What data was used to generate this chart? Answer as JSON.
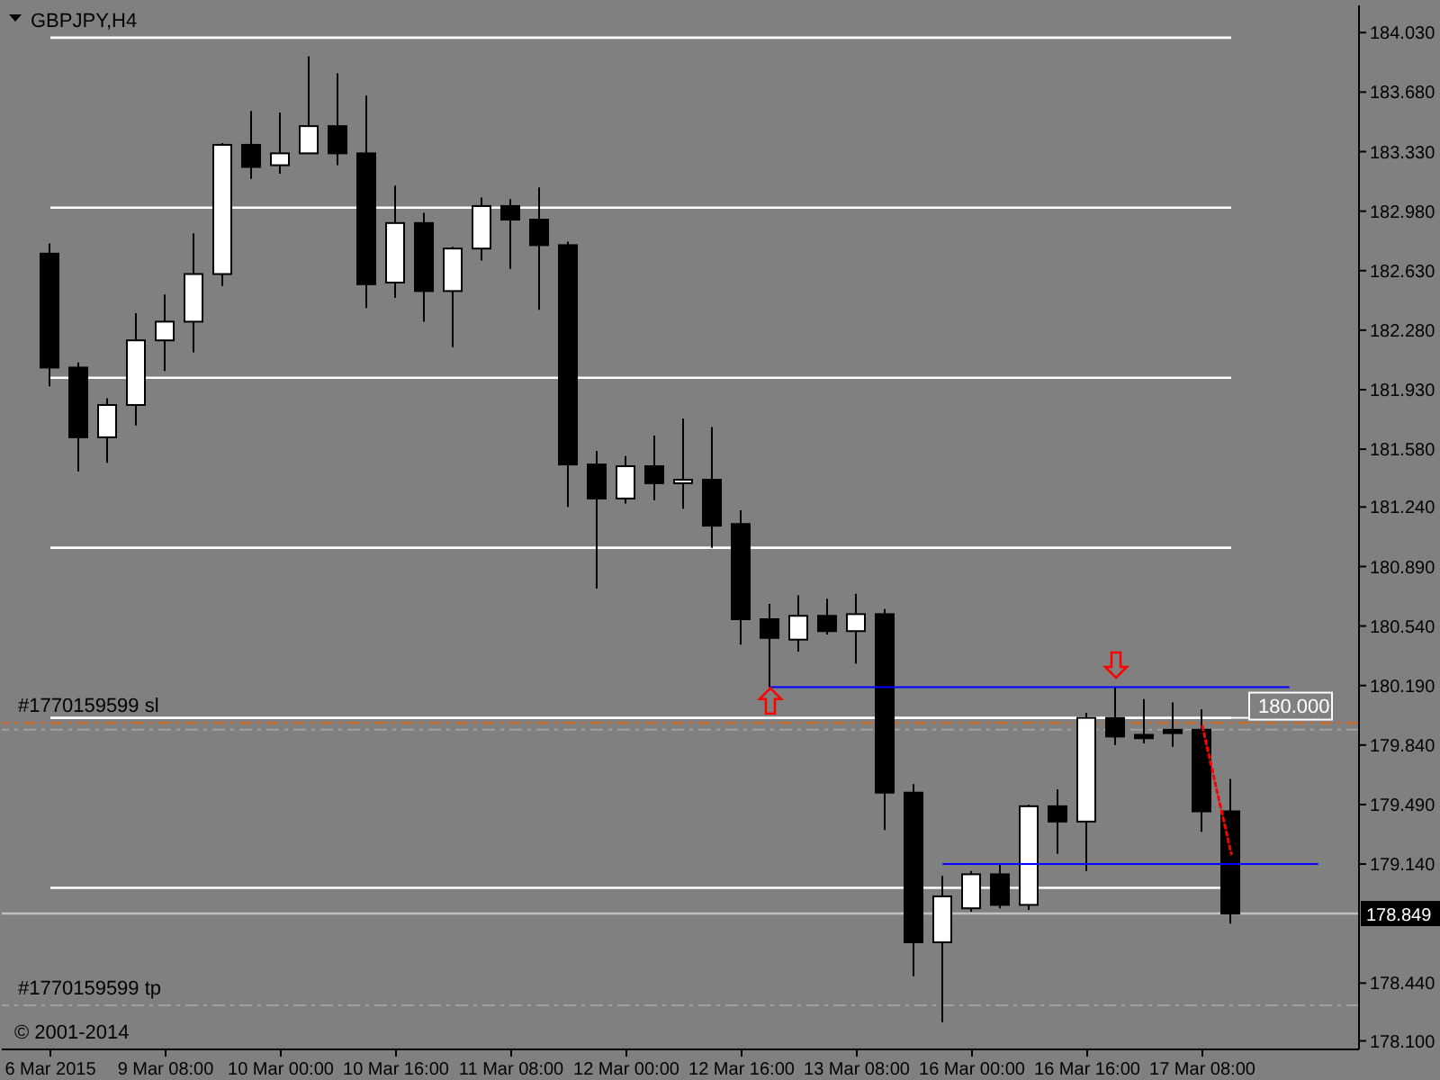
{
  "chart_data": {
    "type": "candlestick",
    "title": "GBPJPY,H4",
    "categories": [
      "6 Mar 2015",
      null,
      null,
      null,
      "9 Mar 08:00",
      null,
      null,
      null,
      "10 Mar 00:00",
      null,
      null,
      null,
      "10 Mar 16:00",
      null,
      null,
      null,
      "11 Mar 08:00",
      null,
      null,
      null,
      "12 Mar 00:00",
      null,
      null,
      null,
      "12 Mar 16:00",
      null,
      null,
      null,
      "13 Mar 08:00",
      null,
      null,
      null,
      "16 Mar 00:00",
      null,
      null,
      null,
      "16 Mar 16:00",
      null,
      null,
      null,
      "17 Mar 08:00",
      null,
      null,
      null,
      null
    ],
    "ohlc": [
      [
        182.73,
        182.79,
        181.95,
        182.06
      ],
      [
        182.06,
        182.09,
        181.45,
        181.65
      ],
      [
        181.65,
        181.88,
        181.5,
        181.84
      ],
      [
        181.84,
        182.38,
        181.72,
        182.22
      ],
      [
        182.22,
        182.49,
        182.04,
        182.33
      ],
      [
        182.33,
        182.85,
        182.15,
        182.61
      ],
      [
        182.61,
        183.38,
        182.54,
        183.37
      ],
      [
        183.37,
        183.57,
        183.17,
        183.24
      ],
      [
        183.25,
        183.56,
        183.2,
        183.32
      ],
      [
        183.32,
        183.89,
        183.32,
        183.48
      ],
      [
        183.48,
        183.79,
        183.25,
        183.32
      ],
      [
        183.32,
        183.66,
        182.41,
        182.55
      ],
      [
        182.56,
        183.13,
        182.47,
        182.91
      ],
      [
        182.91,
        182.97,
        182.33,
        182.51
      ],
      [
        182.51,
        182.77,
        182.18,
        182.76
      ],
      [
        182.76,
        183.06,
        182.69,
        183.01
      ],
      [
        183.01,
        183.05,
        182.64,
        182.93
      ],
      [
        182.93,
        183.12,
        182.4,
        182.78
      ],
      [
        182.78,
        182.8,
        181.24,
        181.49
      ],
      [
        181.49,
        181.57,
        180.76,
        181.29
      ],
      [
        181.29,
        181.54,
        181.26,
        181.48
      ],
      [
        181.48,
        181.66,
        181.28,
        181.38
      ],
      [
        181.38,
        181.76,
        181.23,
        181.4
      ],
      [
        181.4,
        181.71,
        181.0,
        181.13
      ],
      [
        181.14,
        181.22,
        180.43,
        180.58
      ],
      [
        180.58,
        180.67,
        180.18,
        180.47
      ],
      [
        180.46,
        180.72,
        180.39,
        180.6
      ],
      [
        180.6,
        180.7,
        180.49,
        180.51
      ],
      [
        180.51,
        180.73,
        180.32,
        180.61
      ],
      [
        180.61,
        180.64,
        179.34,
        179.56
      ],
      [
        179.56,
        179.61,
        178.48,
        178.68
      ],
      [
        178.68,
        179.07,
        178.21,
        178.95
      ],
      [
        178.88,
        179.1,
        178.86,
        179.08
      ],
      [
        179.08,
        179.14,
        178.88,
        178.9
      ],
      [
        178.9,
        179.49,
        178.87,
        179.48
      ],
      [
        179.48,
        179.58,
        179.2,
        179.39
      ],
      [
        179.39,
        180.03,
        179.1,
        180.0
      ],
      [
        180.0,
        180.18,
        179.84,
        179.89
      ],
      [
        179.9,
        180.11,
        179.85,
        179.88
      ],
      [
        179.93,
        180.09,
        179.83,
        179.91
      ],
      [
        179.93,
        180.05,
        179.33,
        179.45
      ],
      [
        179.45,
        179.64,
        178.79,
        178.849
      ],
      null,
      null,
      null
    ],
    "colors": [
      "#000000",
      "#000000",
      "#ffffff",
      "#ffffff",
      "#ffffff",
      "#ffffff",
      "#ffffff",
      "#000000",
      "#ffffff",
      "#ffffff",
      "#000000",
      "#000000",
      "#ffffff",
      "#000000",
      "#ffffff",
      "#ffffff",
      "#000000",
      "#000000",
      "#000000",
      "#000000",
      "#ffffff",
      "#000000",
      "#ffffff",
      "#000000",
      "#000000",
      "#000000",
      "#ffffff",
      "#000000",
      "#ffffff",
      "#000000",
      "#000000",
      "#ffffff",
      "#ffffff",
      "#000000",
      "#ffffff",
      "#000000",
      "#ffffff",
      "#000000",
      "#000000",
      "#000000",
      "#000000",
      "#000000",
      null,
      null,
      null
    ],
    "series": [
      {
        "type": "line",
        "color": "#0000ff",
        "values": [
          null,
          null,
          null,
          null,
          null,
          null,
          null,
          null,
          null,
          null,
          null,
          null,
          null,
          null,
          null,
          null,
          null,
          null,
          null,
          null,
          null,
          null,
          null,
          null,
          null,
          180.18,
          180.18,
          180.18,
          180.18,
          180.18,
          180.18,
          180.18,
          180.18,
          180.18,
          180.18,
          180.18,
          180.18,
          180.18,
          180.18,
          180.18,
          180.18,
          180.18,
          180.18,
          180.18,
          null
        ]
      },
      {
        "type": "line",
        "color": "#0000ff",
        "values": [
          null,
          null,
          null,
          null,
          null,
          null,
          null,
          null,
          null,
          null,
          null,
          null,
          null,
          null,
          null,
          null,
          null,
          null,
          null,
          null,
          null,
          null,
          null,
          null,
          null,
          null,
          null,
          null,
          null,
          null,
          null,
          179.14,
          179.14,
          179.14,
          179.14,
          179.14,
          179.14,
          179.14,
          179.14,
          179.14,
          179.14,
          179.14,
          179.14,
          179.14,
          179.14
        ]
      },
      {
        "type": "line",
        "color": "#ff0000",
        "line_style": "dotted",
        "values": [
          null,
          null,
          null,
          null,
          null,
          null,
          null,
          null,
          null,
          null,
          null,
          null,
          null,
          null,
          null,
          null,
          null,
          null,
          null,
          null,
          null,
          null,
          null,
          null,
          null,
          null,
          null,
          null,
          null,
          null,
          null,
          null,
          null,
          null,
          null,
          null,
          null,
          null,
          null,
          null,
          179.95,
          179.2,
          null,
          null,
          null
        ]
      },
      {
        "type": "scatter",
        "color": "#ff0000",
        "marker": "triangle",
        "values": [
          null,
          null,
          null,
          null,
          null,
          null,
          null,
          null,
          null,
          null,
          null,
          null,
          null,
          null,
          null,
          null,
          null,
          null,
          null,
          null,
          null,
          null,
          null,
          null,
          null,
          180.1,
          null,
          null,
          null,
          null,
          null,
          null,
          null,
          null,
          null,
          null,
          null,
          180.31,
          null,
          null,
          null,
          null,
          null,
          null,
          null
        ]
      }
    ],
    "ylim": [
      178.05,
      184.19
    ],
    "yticks": [
      {
        "value": 184.03,
        "label": "184.030"
      },
      {
        "value": 183.68,
        "label": "183.680"
      },
      {
        "value": 183.33,
        "label": "183.330"
      },
      {
        "value": 182.98,
        "label": "182.980"
      },
      {
        "value": 182.63,
        "label": "182.630"
      },
      {
        "value": 182.28,
        "label": "182.280"
      },
      {
        "value": 181.93,
        "label": "181.930"
      },
      {
        "value": 181.58,
        "label": "181.580"
      },
      {
        "value": 181.24,
        "label": "181.240"
      },
      {
        "value": 180.89,
        "label": "180.890"
      },
      {
        "value": 180.54,
        "label": "180.540"
      },
      {
        "value": 180.19,
        "label": "180.190"
      },
      {
        "value": 179.84,
        "label": "179.840"
      },
      {
        "value": 179.49,
        "label": "179.490"
      },
      {
        "value": 179.14,
        "label": "179.140"
      },
      {
        "value": 178.44,
        "label": "178.440"
      },
      {
        "value": 178.1,
        "label": "178.100"
      }
    ],
    "ref_lines": [
      {
        "axis": "y",
        "value": 184,
        "color": "#ffffff"
      },
      {
        "axis": "y",
        "value": 183,
        "color": "#ffffff"
      },
      {
        "axis": "y",
        "value": 182,
        "color": "#ffffff"
      },
      {
        "axis": "y",
        "value": 181,
        "color": "#ffffff"
      },
      {
        "axis": "y",
        "value": 180,
        "label": "180.000",
        "color": "#ffffff"
      },
      {
        "axis": "y",
        "value": 179,
        "color": "#ffffff"
      },
      {
        "axis": "y",
        "value": 179.97,
        "label": "#1770159599 sl",
        "color": "#d2691e",
        "line_style": "dashed"
      },
      {
        "axis": "y",
        "value": 179.93,
        "color": "#a0a0a0",
        "line_style": "dashed"
      },
      {
        "axis": "y",
        "value": 178.31,
        "label": "#1770159599 tp",
        "color": "#a0a0a0",
        "line_style": "dashed"
      },
      {
        "axis": "y",
        "value": 178.849,
        "label": "178.849",
        "color": "#c0c0c0"
      }
    ],
    "annotations": [
      "© 2001-2014"
    ]
  }
}
